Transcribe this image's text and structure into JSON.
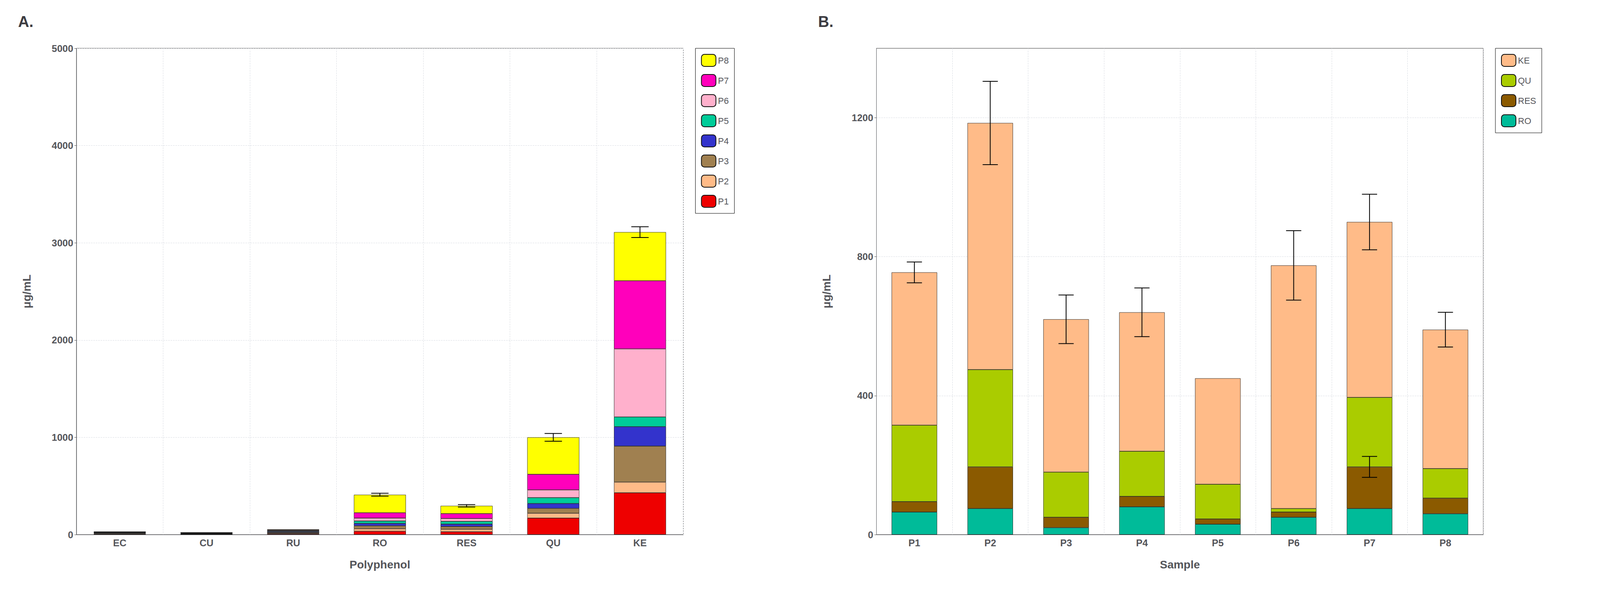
{
  "chart_data": [
    {
      "type": "bar",
      "title": "A.",
      "xlabel": "Polyphenol",
      "ylabel": "μg/mL",
      "categories": [
        "EC",
        "CU",
        "RU",
        "RO",
        "RES",
        "QU",
        "KE"
      ],
      "series": [
        {
          "name": "P1",
          "color": "#EE0000",
          "values": [
            5,
            3,
            8,
            35,
            30,
            170,
            430
          ]
        },
        {
          "name": "P2",
          "color": "#FFBB88",
          "values": [
            5,
            3,
            8,
            25,
            25,
            50,
            110
          ]
        },
        {
          "name": "P3",
          "color": "#A08050",
          "values": [
            5,
            3,
            8,
            30,
            28,
            50,
            370
          ]
        },
        {
          "name": "P4",
          "color": "#3333CC",
          "values": [
            5,
            3,
            8,
            25,
            25,
            50,
            200
          ]
        },
        {
          "name": "P5",
          "color": "#00CC99",
          "values": [
            3,
            3,
            6,
            25,
            28,
            60,
            100
          ]
        },
        {
          "name": "P6",
          "color": "#FFB0CC",
          "values": [
            3,
            3,
            6,
            30,
            30,
            80,
            700
          ]
        },
        {
          "name": "P7",
          "color": "#FF00BB",
          "values": [
            2,
            2,
            5,
            55,
            50,
            160,
            700
          ]
        },
        {
          "name": "P8",
          "color": "#FFFF00",
          "values": [
            2,
            2,
            5,
            185,
            80,
            380,
            500
          ]
        }
      ],
      "errors": [
        0,
        0,
        0,
        15,
        12,
        40,
        55
      ],
      "stacked": true,
      "ylim": [
        0,
        5000
      ],
      "yticks": [
        0,
        1000,
        2000,
        3000,
        4000,
        5000
      ],
      "grid": true,
      "legend": "upper right"
    },
    {
      "type": "bar",
      "title": "B.",
      "xlabel": "Sample",
      "ylabel": "μg/mL",
      "categories": [
        "P1",
        "P2",
        "P3",
        "P4",
        "P5",
        "P6",
        "P7",
        "P8"
      ],
      "series": [
        {
          "name": "RO",
          "color": "#00BB99",
          "values": [
            65,
            75,
            20,
            80,
            30,
            50,
            75,
            60
          ]
        },
        {
          "name": "RES",
          "color": "#8B5A00",
          "values": [
            30,
            120,
            30,
            30,
            15,
            15,
            120,
            45
          ],
          "errors": [
            0,
            0,
            0,
            0,
            0,
            0,
            30,
            0
          ]
        },
        {
          "name": "QU",
          "color": "#AACC00",
          "values": [
            220,
            280,
            130,
            130,
            100,
            10,
            200,
            85
          ]
        },
        {
          "name": "KE",
          "color": "#FFBB88",
          "values": [
            440,
            710,
            440,
            400,
            305,
            700,
            505,
            400
          ]
        }
      ],
      "errors": [
        30,
        120,
        70,
        70,
        0,
        100,
        80,
        50
      ],
      "stacked": true,
      "ylim": [
        0,
        1400
      ],
      "yticks": [
        0,
        400,
        800,
        1200
      ],
      "grid": true,
      "legend": "upper right"
    }
  ]
}
